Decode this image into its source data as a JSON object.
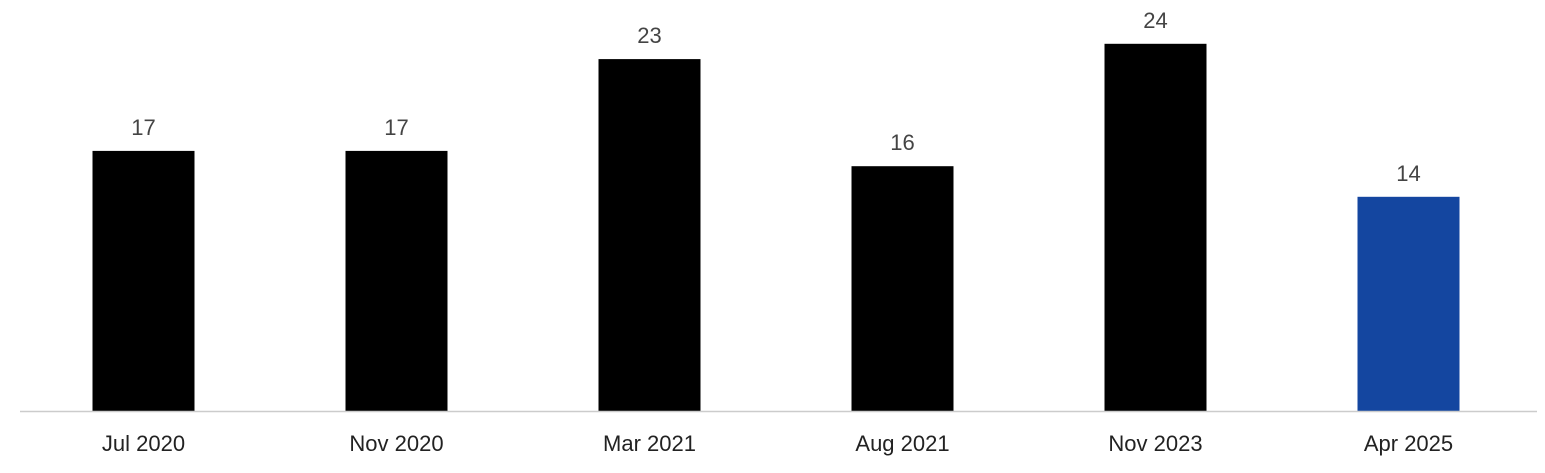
{
  "chart_data": {
    "type": "bar",
    "categories": [
      "Jul 2020",
      "Nov 2020",
      "Mar 2021",
      "Aug 2021",
      "Nov 2023",
      "Apr 2025"
    ],
    "values": [
      17,
      17,
      23,
      16,
      24,
      14
    ],
    "data_labels": [
      "17",
      "17",
      "23",
      "16",
      "24",
      "14"
    ],
    "bar_colors": [
      "#000000",
      "#000000",
      "#000000",
      "#000000",
      "#000000",
      "#1446a0"
    ],
    "title": "",
    "xlabel": "",
    "ylabel": "",
    "ylim": [
      0,
      24
    ],
    "grid": false,
    "legend": "none",
    "y_axis_visible": false
  },
  "colors": {
    "bar_default": "#000000",
    "bar_highlight": "#1446a0",
    "baseline": "#cccccc",
    "label_text": "#444444",
    "tick_text": "#222222"
  }
}
